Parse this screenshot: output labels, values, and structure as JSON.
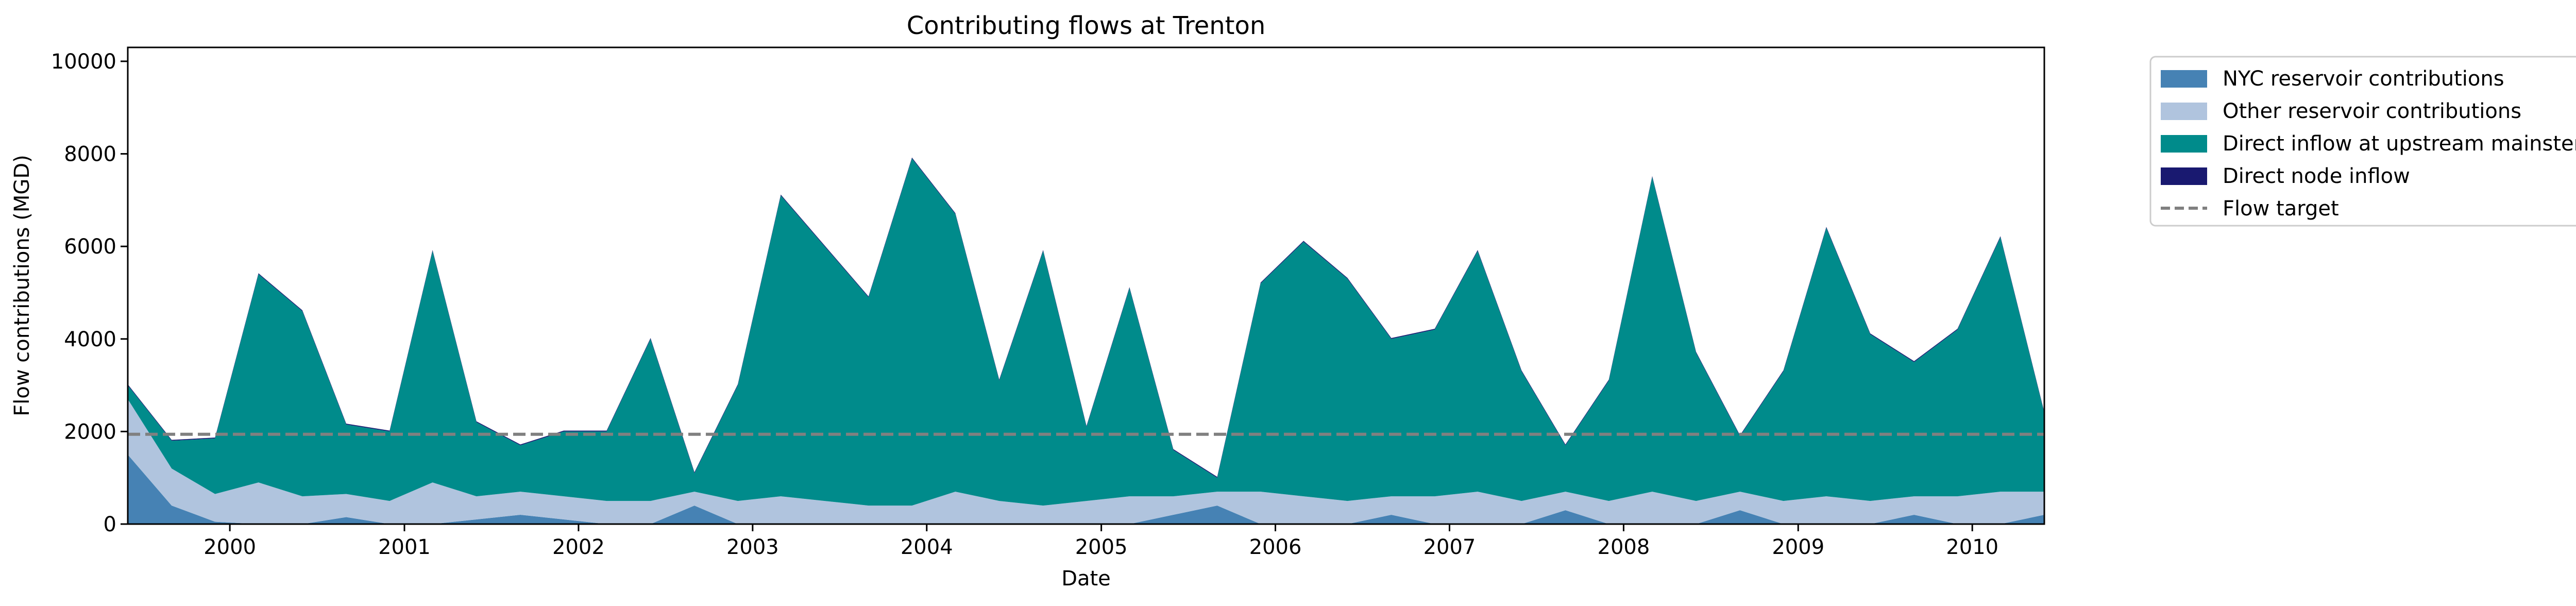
{
  "chart_data": {
    "type": "area",
    "title": "Contributing flows at Trenton",
    "xlabel": "Date",
    "ylabel": "Flow contributions (MGD)",
    "xlim": [
      "1999-06-01",
      "2010-06-01"
    ],
    "ylim": [
      0,
      10300
    ],
    "x_ticks": [
      "2000",
      "2001",
      "2002",
      "2003",
      "2004",
      "2005",
      "2006",
      "2007",
      "2008",
      "2009",
      "2010"
    ],
    "y_ticks": [
      0,
      2000,
      4000,
      6000,
      8000,
      10000
    ],
    "y_tick_labels": [
      "0",
      "2000",
      "4000",
      "6000",
      "8000",
      "10000"
    ],
    "grid": false,
    "legend_position": "outside-right",
    "flow_target": {
      "name": "Flow target",
      "value": 1940,
      "style": "dashed",
      "color": "#808080"
    },
    "series": [
      {
        "name": "NYC reservoir contributions",
        "color": "#4682b4",
        "x": [
          "1999-06",
          "1999-09",
          "1999-12",
          "2000-03",
          "2000-06",
          "2000-09",
          "2000-12",
          "2001-03",
          "2001-06",
          "2001-09",
          "2001-12",
          "2002-03",
          "2002-06",
          "2002-09",
          "2002-12",
          "2003-03",
          "2003-06",
          "2003-09",
          "2003-12",
          "2004-03",
          "2004-06",
          "2004-09",
          "2004-12",
          "2005-03",
          "2005-06",
          "2005-09",
          "2005-12",
          "2006-03",
          "2006-06",
          "2006-09",
          "2006-12",
          "2007-03",
          "2007-06",
          "2007-09",
          "2007-12",
          "2008-03",
          "2008-06",
          "2008-09",
          "2008-12",
          "2009-03",
          "2009-06",
          "2009-09",
          "2009-12",
          "2010-03",
          "2010-06"
        ],
        "values": [
          1500,
          400,
          50,
          0,
          0,
          150,
          0,
          0,
          100,
          200,
          100,
          0,
          0,
          400,
          0,
          0,
          0,
          0,
          0,
          0,
          0,
          0,
          0,
          0,
          200,
          400,
          0,
          0,
          0,
          200,
          0,
          0,
          0,
          300,
          0,
          0,
          0,
          300,
          0,
          0,
          0,
          200,
          0,
          0,
          200
        ]
      },
      {
        "name": "Other reservoir contributions",
        "color": "#b0c4de",
        "x": [
          "1999-06",
          "1999-09",
          "1999-12",
          "2000-03",
          "2000-06",
          "2000-09",
          "2000-12",
          "2001-03",
          "2001-06",
          "2001-09",
          "2001-12",
          "2002-03",
          "2002-06",
          "2002-09",
          "2002-12",
          "2003-03",
          "2003-06",
          "2003-09",
          "2003-12",
          "2004-03",
          "2004-06",
          "2004-09",
          "2004-12",
          "2005-03",
          "2005-06",
          "2005-09",
          "2005-12",
          "2006-03",
          "2006-06",
          "2006-09",
          "2006-12",
          "2007-03",
          "2007-06",
          "2007-09",
          "2007-12",
          "2008-03",
          "2008-06",
          "2008-09",
          "2008-12",
          "2009-03",
          "2009-06",
          "2009-09",
          "2009-12",
          "2010-03",
          "2010-06"
        ],
        "values": [
          1200,
          800,
          600,
          900,
          600,
          500,
          500,
          900,
          500,
          500,
          500,
          500,
          500,
          300,
          500,
          600,
          500,
          400,
          400,
          700,
          500,
          400,
          500,
          600,
          400,
          300,
          700,
          600,
          500,
          400,
          600,
          700,
          500,
          400,
          500,
          700,
          500,
          400,
          500,
          600,
          500,
          400,
          600,
          700,
          500
        ]
      },
      {
        "name": "Direct inflow at upstream mainstem nodes",
        "color": "#008b8b",
        "x": [
          "1999-06",
          "1999-09",
          "1999-12",
          "2000-03",
          "2000-06",
          "2000-09",
          "2000-12",
          "2001-03",
          "2001-06",
          "2001-09",
          "2001-12",
          "2002-03",
          "2002-06",
          "2002-09",
          "2002-12",
          "2003-03",
          "2003-06",
          "2003-09",
          "2003-12",
          "2004-03",
          "2004-06",
          "2004-09",
          "2004-12",
          "2005-03",
          "2005-06",
          "2005-09",
          "2005-12",
          "2006-03",
          "2006-06",
          "2006-09",
          "2006-12",
          "2007-03",
          "2007-06",
          "2007-09",
          "2007-12",
          "2008-03",
          "2008-06",
          "2008-09",
          "2008-12",
          "2009-03",
          "2009-06",
          "2009-09",
          "2009-12",
          "2010-03",
          "2010-06"
        ],
        "values": [
          300,
          600,
          1200,
          4500,
          4000,
          1500,
          1500,
          5000,
          1600,
          1000,
          1400,
          1500,
          3500,
          400,
          2500,
          6500,
          5500,
          4500,
          7500,
          6000,
          2600,
          5500,
          1600,
          4500,
          1000,
          300,
          4500,
          5500,
          4800,
          3400,
          3600,
          5200,
          2800,
          1000,
          2600,
          6800,
          3200,
          1200,
          2800,
          5800,
          3600,
          2900,
          3600,
          5500,
          1700
        ]
      },
      {
        "name": "Direct node inflow",
        "color": "#191970",
        "x": [
          "1999-06",
          "2010-06"
        ],
        "values": [
          20,
          20
        ]
      }
    ]
  }
}
